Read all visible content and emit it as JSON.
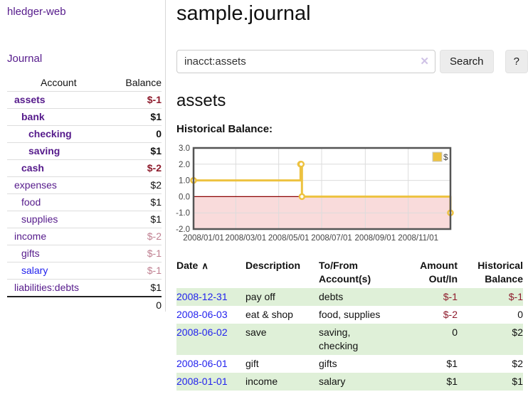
{
  "app": {
    "title": "hledger-web"
  },
  "colors": {
    "link_purple": "#551a8b",
    "link_blue": "#2222ee",
    "negative_strong": "#8e1b2c",
    "negative_soft": "#bf7f90",
    "row_green": "#dff0d8",
    "series_gold": "#EDC240"
  },
  "sidebar": {
    "journal_link": "Journal",
    "accounts_table": {
      "headers": {
        "account": "Account",
        "balance": "Balance"
      },
      "rows": [
        {
          "name": "assets",
          "indent": 1,
          "bold": true,
          "balance": "$-1",
          "bclass": "neg-strong",
          "link": "purple"
        },
        {
          "name": "bank",
          "indent": 2,
          "bold": true,
          "balance": "$1",
          "bclass": "",
          "link": "purple"
        },
        {
          "name": "checking",
          "indent": 3,
          "bold": true,
          "balance": "0",
          "bclass": "",
          "link": "purple"
        },
        {
          "name": "saving",
          "indent": 3,
          "bold": true,
          "balance": "$1",
          "bclass": "",
          "link": "purple"
        },
        {
          "name": "cash",
          "indent": 2,
          "bold": true,
          "balance": "$-2",
          "bclass": "neg-strong",
          "link": "purple"
        },
        {
          "name": "expenses",
          "indent": 1,
          "bold": false,
          "balance": "$2",
          "bclass": "",
          "link": "purple"
        },
        {
          "name": "food",
          "indent": 2,
          "bold": false,
          "balance": "$1",
          "bclass": "",
          "link": "purple"
        },
        {
          "name": "supplies",
          "indent": 2,
          "bold": false,
          "balance": "$1",
          "bclass": "",
          "link": "purple"
        },
        {
          "name": "income",
          "indent": 1,
          "bold": false,
          "balance": "$-2",
          "bclass": "neg-soft",
          "link": "purple"
        },
        {
          "name": "gifts",
          "indent": 2,
          "bold": false,
          "balance": "$-1",
          "bclass": "neg-soft",
          "link": "purple"
        },
        {
          "name": "salary",
          "indent": 2,
          "bold": false,
          "balance": "$-1",
          "bclass": "neg-soft",
          "link": "blue"
        },
        {
          "name": "liabilities:debts",
          "indent": 1,
          "bold": false,
          "balance": "$1",
          "bclass": "",
          "link": "purple"
        }
      ],
      "total": "0"
    }
  },
  "main": {
    "title": "sample.journal",
    "search": {
      "value": "inacct:assets",
      "clear_icon": "✕",
      "search_label": "Search",
      "help_label": "?"
    },
    "account_heading": "assets",
    "chart_heading": "Historical Balance:",
    "register_table": {
      "headers": {
        "date": "Date",
        "sort_icon": "∧",
        "description": "Description",
        "accounts": "To/From Account(s)",
        "amount": "Amount Out/In",
        "balance": "Historical Balance"
      },
      "rows": [
        {
          "date": "2008-12-31",
          "description": "pay off",
          "accounts": "debts",
          "amount": "$-1",
          "amount_neg": true,
          "balance": "$-1",
          "balance_neg": true
        },
        {
          "date": "2008-06-03",
          "description": "eat & shop",
          "accounts": "food, supplies",
          "amount": "$-2",
          "amount_neg": true,
          "balance": "0",
          "balance_neg": false
        },
        {
          "date": "2008-06-02",
          "description": "save",
          "accounts": "saving, checking",
          "amount": "0",
          "amount_neg": false,
          "balance": "$2",
          "balance_neg": false
        },
        {
          "date": "2008-06-01",
          "description": "gift",
          "accounts": "gifts",
          "amount": "$1",
          "amount_neg": false,
          "balance": "$2",
          "balance_neg": false
        },
        {
          "date": "2008-01-01",
          "description": "income",
          "accounts": "salary",
          "amount": "$1",
          "amount_neg": false,
          "balance": "$1",
          "balance_neg": false
        }
      ]
    }
  },
  "chart_data": {
    "type": "line",
    "title": "Historical Balance:",
    "legend": [
      {
        "label": "$",
        "color": "#EDC240",
        "position": "top-right"
      }
    ],
    "step": true,
    "ylim": [
      -2,
      3
    ],
    "xlim_days": [
      0,
      365
    ],
    "y_ticks": [
      {
        "label": "3.0",
        "value": 3
      },
      {
        "label": "2.0",
        "value": 2
      },
      {
        "label": "1.0",
        "value": 1
      },
      {
        "label": "0.0",
        "value": 0
      },
      {
        "label": "-1.0",
        "value": -1
      },
      {
        "label": "-2.0",
        "value": -2
      }
    ],
    "x_ticks": [
      {
        "label": "2008/01/01",
        "day": 0
      },
      {
        "label": "2008/03/01",
        "day": 60
      },
      {
        "label": "2008/05/01",
        "day": 121
      },
      {
        "label": "2008/07/01",
        "day": 182
      },
      {
        "label": "2008/09/01",
        "day": 244
      },
      {
        "label": "2008/11/01",
        "day": 305
      }
    ],
    "series": [
      {
        "name": "$",
        "color": "#EDC240",
        "points": [
          {
            "date": "2008-01-01",
            "day": 0,
            "value": 1
          },
          {
            "date": "2008-06-01",
            "day": 152,
            "value": 2
          },
          {
            "date": "2008-06-02",
            "day": 153,
            "value": 2
          },
          {
            "date": "2008-06-03",
            "day": 154,
            "value": 0
          },
          {
            "date": "2008-12-31",
            "day": 365,
            "value": -1
          }
        ]
      }
    ],
    "grid": true,
    "negative_region_fill": "#f9dbdb",
    "zero_line_color": "#8b0000",
    "border_color": "#545454"
  }
}
